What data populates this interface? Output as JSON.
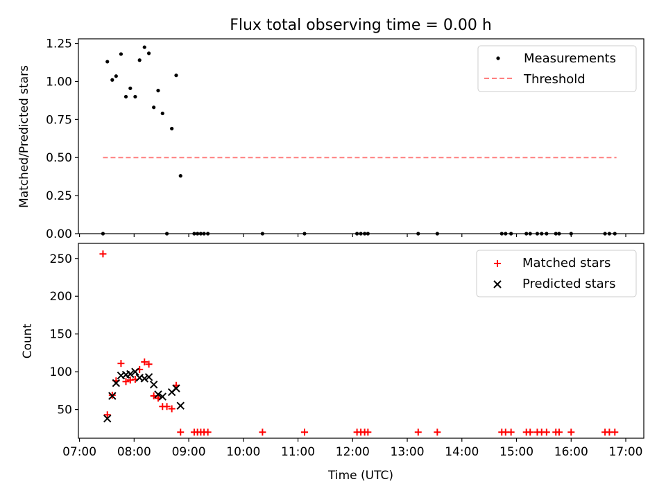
{
  "chart_data": {
    "title": "Flux total observing time = 0.00 h",
    "x_ticks": [
      "07:00",
      "08:00",
      "09:00",
      "10:00",
      "11:00",
      "12:00",
      "13:00",
      "14:00",
      "15:00",
      "16:00",
      "17:00"
    ],
    "xlabel": "Time (UTC)",
    "x_range_hours": [
      6.98,
      17.33
    ],
    "top": {
      "type": "scatter",
      "ylabel": "Matched/Predicted stars",
      "ylim": [
        0,
        1.28
      ],
      "y_ticks": [
        "0.00",
        "0.25",
        "0.50",
        "0.75",
        "1.00",
        "1.25"
      ],
      "y_tick_values": [
        0,
        0.25,
        0.5,
        0.75,
        1.0,
        1.25
      ],
      "legend": {
        "measurements": "Measurements",
        "threshold": "Threshold"
      },
      "threshold": {
        "value": 0.5,
        "x": [
          7.43,
          16.83
        ],
        "color": "#ff7f7f"
      },
      "measurements": [
        [
          7.43,
          0.0
        ],
        [
          7.51,
          1.13
        ],
        [
          7.6,
          1.01
        ],
        [
          7.67,
          1.035
        ],
        [
          7.76,
          1.18
        ],
        [
          7.85,
          0.9
        ],
        [
          7.93,
          0.955
        ],
        [
          8.02,
          0.9
        ],
        [
          8.1,
          1.14
        ],
        [
          8.19,
          1.225
        ],
        [
          8.27,
          1.185
        ],
        [
          8.36,
          0.83
        ],
        [
          8.44,
          0.94
        ],
        [
          8.52,
          0.79
        ],
        [
          8.6,
          0.0
        ],
        [
          8.69,
          0.69
        ],
        [
          8.77,
          1.04
        ],
        [
          8.85,
          0.38
        ],
        [
          9.1,
          0.0
        ],
        [
          9.16,
          0.0
        ],
        [
          9.22,
          0.0
        ],
        [
          9.28,
          0.0
        ],
        [
          9.35,
          0.0
        ],
        [
          10.35,
          0.0
        ],
        [
          11.12,
          0.0
        ],
        [
          12.08,
          0.0
        ],
        [
          12.15,
          0.0
        ],
        [
          12.22,
          0.0
        ],
        [
          12.28,
          0.0
        ],
        [
          13.2,
          0.0
        ],
        [
          13.55,
          0.0
        ],
        [
          14.73,
          0.0
        ],
        [
          14.8,
          0.0
        ],
        [
          14.9,
          0.0
        ],
        [
          15.18,
          0.0
        ],
        [
          15.25,
          0.0
        ],
        [
          15.38,
          0.0
        ],
        [
          15.46,
          0.0
        ],
        [
          15.55,
          0.0
        ],
        [
          15.72,
          0.0
        ],
        [
          15.78,
          0.0
        ],
        [
          16.0,
          0.0
        ],
        [
          16.62,
          0.0
        ],
        [
          16.7,
          0.0
        ],
        [
          16.8,
          0.0
        ]
      ]
    },
    "bottom": {
      "type": "scatter",
      "ylabel": "Count",
      "ylim": [
        12,
        270
      ],
      "y_ticks": [
        "50",
        "100",
        "150",
        "200",
        "250"
      ],
      "y_tick_values": [
        50,
        100,
        150,
        200,
        250
      ],
      "legend": {
        "matched": "Matched stars",
        "predicted": "Predicted stars"
      },
      "matched_color": "#ff0000",
      "predicted_color": "#000000",
      "matched": [
        [
          7.43,
          256
        ],
        [
          7.51,
          43
        ],
        [
          7.6,
          69
        ],
        [
          7.67,
          88
        ],
        [
          7.76,
          111
        ],
        [
          7.85,
          87
        ],
        [
          7.93,
          89
        ],
        [
          8.02,
          90
        ],
        [
          8.1,
          103
        ],
        [
          8.19,
          113
        ],
        [
          8.27,
          110
        ],
        [
          8.36,
          68
        ],
        [
          8.44,
          65
        ],
        [
          8.52,
          54
        ],
        [
          8.6,
          54
        ],
        [
          8.69,
          51
        ],
        [
          8.77,
          82
        ],
        [
          8.85,
          20
        ],
        [
          9.1,
          20
        ],
        [
          9.16,
          20
        ],
        [
          9.22,
          20
        ],
        [
          9.28,
          20
        ],
        [
          9.35,
          20
        ],
        [
          10.35,
          20
        ],
        [
          11.12,
          20
        ],
        [
          12.08,
          20
        ],
        [
          12.15,
          20
        ],
        [
          12.22,
          20
        ],
        [
          12.28,
          20
        ],
        [
          13.2,
          20
        ],
        [
          13.55,
          20
        ],
        [
          14.73,
          20
        ],
        [
          14.8,
          20
        ],
        [
          14.9,
          20
        ],
        [
          15.18,
          20
        ],
        [
          15.25,
          20
        ],
        [
          15.38,
          20
        ],
        [
          15.46,
          20
        ],
        [
          15.55,
          20
        ],
        [
          15.72,
          20
        ],
        [
          15.78,
          20
        ],
        [
          16.0,
          20
        ],
        [
          16.62,
          20
        ],
        [
          16.7,
          20
        ],
        [
          16.8,
          20
        ]
      ],
      "predicted": [
        [
          7.51,
          38
        ],
        [
          7.6,
          68
        ],
        [
          7.67,
          85
        ],
        [
          7.76,
          95
        ],
        [
          7.85,
          96
        ],
        [
          7.93,
          97
        ],
        [
          8.02,
          100
        ],
        [
          8.1,
          92
        ],
        [
          8.19,
          91
        ],
        [
          8.27,
          93
        ],
        [
          8.36,
          83
        ],
        [
          8.44,
          70
        ],
        [
          8.52,
          67
        ],
        [
          8.69,
          73
        ],
        [
          8.77,
          78
        ],
        [
          8.85,
          55
        ]
      ]
    }
  }
}
